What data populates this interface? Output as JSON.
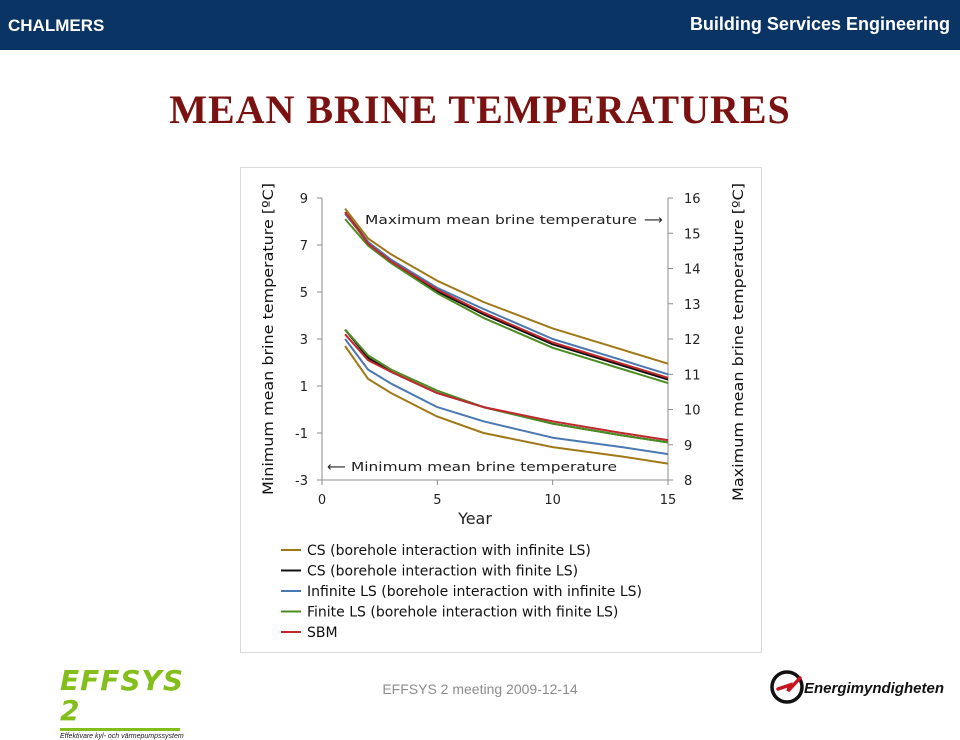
{
  "header": {
    "brand": "CHALMERS",
    "department": "Building Services Engineering",
    "bar_color": "#0a3464"
  },
  "slide": {
    "title": "MEAN BRINE TEMPERATURES",
    "title_color": "#7a1212"
  },
  "footer": {
    "meeting": "EFFSYS 2 meeting 2009-12-14",
    "left_logo_text": "EFFSYS 2",
    "left_logo_tagline": "Effektivare kyl- och värmepumpssystem",
    "right_logo_text": "Energimyndigheten"
  },
  "chart_data": {
    "type": "line",
    "xlabel": "Year",
    "ylabel_left": "Minimum mean brine temperature [ºC]",
    "ylabel_right": "Maximum mean brine temperature [ºC]",
    "xlim": [
      0,
      15
    ],
    "xticks": [
      0,
      5,
      10,
      15
    ],
    "ylim_left": [
      -3,
      9
    ],
    "yticks_left": [
      -3,
      -1,
      1,
      3,
      5,
      7,
      9
    ],
    "ylim_right": [
      8,
      16
    ],
    "yticks_right": [
      8,
      9,
      10,
      11,
      12,
      13,
      14,
      15,
      16
    ],
    "annotations": {
      "max": "Maximum mean brine temperature",
      "max_arrow": "⟶",
      "min": "Minimum mean brine temperature",
      "min_arrow": "⟵"
    },
    "x": [
      1,
      2,
      3,
      5,
      7,
      10,
      13,
      15
    ],
    "series": [
      {
        "name": "CS (borehole interaction with infinite LS)",
        "color": "#a07818",
        "min_values": [
          2.7,
          1.3,
          0.7,
          -0.3,
          -1.0,
          -1.6,
          -2.0,
          -2.3
        ],
        "max_values": [
          15.7,
          14.85,
          14.4,
          13.65,
          13.05,
          12.3,
          11.7,
          11.3
        ]
      },
      {
        "name": "CS (borehole interaction with finite LS)",
        "color": "#111111",
        "min_values": [
          3.4,
          2.2,
          1.6,
          0.7,
          0.1,
          -0.6,
          -1.1,
          -1.4
        ],
        "max_values": [
          15.6,
          14.75,
          14.2,
          13.35,
          12.7,
          11.85,
          11.25,
          10.85
        ]
      },
      {
        "name": "Infinite LS (borehole interaction with infinite LS)",
        "color": "#4a78b0",
        "min_values": [
          3.0,
          1.7,
          1.1,
          0.1,
          -0.5,
          -1.2,
          -1.6,
          -1.9
        ],
        "max_values": [
          15.55,
          14.75,
          14.25,
          13.45,
          12.85,
          12.0,
          11.4,
          11.0
        ]
      },
      {
        "name": "Finite LS (borehole interaction with finite LS)",
        "color": "#4c8c22",
        "min_values": [
          3.4,
          2.3,
          1.7,
          0.8,
          0.1,
          -0.6,
          -1.1,
          -1.4
        ],
        "max_values": [
          15.4,
          14.65,
          14.15,
          13.3,
          12.6,
          11.75,
          11.15,
          10.75
        ]
      },
      {
        "name": "SBM",
        "color": "#c0282e",
        "min_values": [
          3.2,
          2.1,
          1.6,
          0.7,
          0.1,
          -0.5,
          -1.0,
          -1.3
        ],
        "max_values": [
          15.6,
          14.7,
          14.2,
          13.4,
          12.75,
          11.9,
          11.3,
          10.9
        ]
      }
    ]
  }
}
